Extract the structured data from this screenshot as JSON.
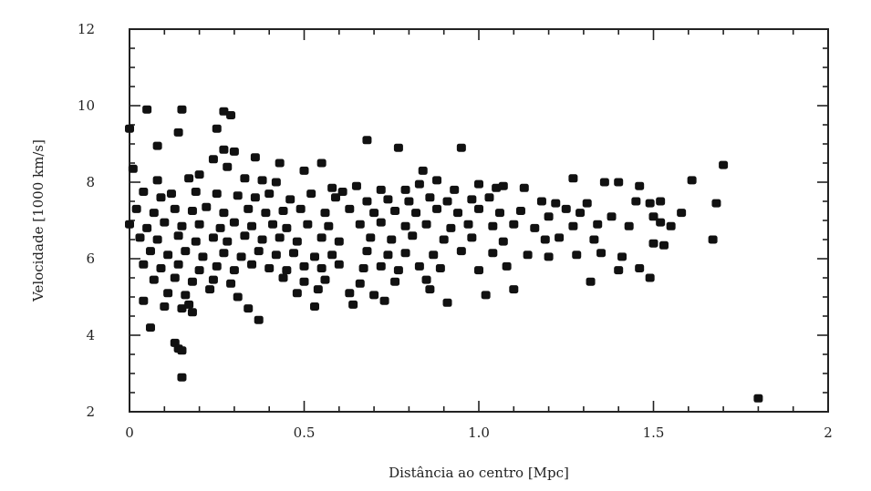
{
  "chart_data": {
    "type": "scatter",
    "title": "",
    "xlabel": "Distância ao centro [Mpc]",
    "ylabel": "Velocidade [1000 km/s]",
    "xlim": [
      0,
      2
    ],
    "ylim": [
      2,
      12
    ],
    "x_ticks": [
      {
        "value": 0,
        "label": "0"
      },
      {
        "value": 0.5,
        "label": "0.5"
      },
      {
        "value": 1.0,
        "label": "1.0"
      },
      {
        "value": 1.5,
        "label": "1.5"
      },
      {
        "value": 2,
        "label": "2"
      }
    ],
    "y_ticks": [
      {
        "value": 2,
        "label": "2"
      },
      {
        "value": 4,
        "label": "4"
      },
      {
        "value": 6,
        "label": "6"
      },
      {
        "value": 8,
        "label": "8"
      },
      {
        "value": 10,
        "label": "10"
      },
      {
        "value": 12,
        "label": "12"
      }
    ],
    "grid": false,
    "marker_color": "#111111",
    "series": [
      {
        "points": [
          [
            0.0,
            9.4
          ],
          [
            0.05,
            9.9
          ],
          [
            0.15,
            9.9
          ],
          [
            0.27,
            9.85
          ],
          [
            0.29,
            9.75
          ],
          [
            0.14,
            9.3
          ],
          [
            0.25,
            9.4
          ],
          [
            0.08,
            8.95
          ],
          [
            0.27,
            8.85
          ],
          [
            0.3,
            8.8
          ],
          [
            0.24,
            8.6
          ],
          [
            0.36,
            8.65
          ],
          [
            0.01,
            8.35
          ],
          [
            0.28,
            8.4
          ],
          [
            0.43,
            8.5
          ],
          [
            0.5,
            8.3
          ],
          [
            0.55,
            8.5
          ],
          [
            0.68,
            9.1
          ],
          [
            0.77,
            8.9
          ],
          [
            0.95,
            8.9
          ],
          [
            0.84,
            8.3
          ],
          [
            0.88,
            8.05
          ],
          [
            1.0,
            7.95
          ],
          [
            1.05,
            7.85
          ],
          [
            1.07,
            7.9
          ],
          [
            1.13,
            7.85
          ],
          [
            1.36,
            8.0
          ],
          [
            1.4,
            8.0
          ],
          [
            1.46,
            7.9
          ],
          [
            1.61,
            8.05
          ],
          [
            1.7,
            8.45
          ],
          [
            1.27,
            8.1
          ],
          [
            0.08,
            8.05
          ],
          [
            0.17,
            8.1
          ],
          [
            0.2,
            8.2
          ],
          [
            0.33,
            8.1
          ],
          [
            0.38,
            8.05
          ],
          [
            0.42,
            8.0
          ],
          [
            0.58,
            7.85
          ],
          [
            0.61,
            7.75
          ],
          [
            0.65,
            7.9
          ],
          [
            0.72,
            7.8
          ],
          [
            0.79,
            7.8
          ],
          [
            0.83,
            7.95
          ],
          [
            0.93,
            7.8
          ],
          [
            0.04,
            7.75
          ],
          [
            0.09,
            7.6
          ],
          [
            0.12,
            7.7
          ],
          [
            0.19,
            7.75
          ],
          [
            0.25,
            7.7
          ],
          [
            0.31,
            7.65
          ],
          [
            0.36,
            7.6
          ],
          [
            0.4,
            7.7
          ],
          [
            0.46,
            7.55
          ],
          [
            0.52,
            7.7
          ],
          [
            0.59,
            7.6
          ],
          [
            0.68,
            7.5
          ],
          [
            0.74,
            7.55
          ],
          [
            0.8,
            7.5
          ],
          [
            0.86,
            7.6
          ],
          [
            0.91,
            7.5
          ],
          [
            0.98,
            7.55
          ],
          [
            1.03,
            7.6
          ],
          [
            1.18,
            7.5
          ],
          [
            1.22,
            7.45
          ],
          [
            1.31,
            7.45
          ],
          [
            1.45,
            7.5
          ],
          [
            1.49,
            7.45
          ],
          [
            1.52,
            7.5
          ],
          [
            1.68,
            7.45
          ],
          [
            0.02,
            7.3
          ],
          [
            0.07,
            7.2
          ],
          [
            0.13,
            7.3
          ],
          [
            0.18,
            7.25
          ],
          [
            0.22,
            7.35
          ],
          [
            0.27,
            7.2
          ],
          [
            0.34,
            7.3
          ],
          [
            0.39,
            7.2
          ],
          [
            0.44,
            7.25
          ],
          [
            0.49,
            7.3
          ],
          [
            0.56,
            7.2
          ],
          [
            0.63,
            7.3
          ],
          [
            0.7,
            7.2
          ],
          [
            0.76,
            7.25
          ],
          [
            0.82,
            7.2
          ],
          [
            0.88,
            7.3
          ],
          [
            0.94,
            7.2
          ],
          [
            1.0,
            7.3
          ],
          [
            1.06,
            7.2
          ],
          [
            1.12,
            7.25
          ],
          [
            1.2,
            7.1
          ],
          [
            1.25,
            7.3
          ],
          [
            1.29,
            7.2
          ],
          [
            1.38,
            7.1
          ],
          [
            1.5,
            7.1
          ],
          [
            1.58,
            7.2
          ],
          [
            0.0,
            6.9
          ],
          [
            0.05,
            6.8
          ],
          [
            0.1,
            6.95
          ],
          [
            0.15,
            6.85
          ],
          [
            0.2,
            6.9
          ],
          [
            0.26,
            6.8
          ],
          [
            0.3,
            6.95
          ],
          [
            0.35,
            6.85
          ],
          [
            0.41,
            6.9
          ],
          [
            0.45,
            6.8
          ],
          [
            0.51,
            6.9
          ],
          [
            0.57,
            6.85
          ],
          [
            0.66,
            6.9
          ],
          [
            0.72,
            6.95
          ],
          [
            0.79,
            6.85
          ],
          [
            0.85,
            6.9
          ],
          [
            0.92,
            6.8
          ],
          [
            0.97,
            6.9
          ],
          [
            1.04,
            6.85
          ],
          [
            1.1,
            6.9
          ],
          [
            1.16,
            6.8
          ],
          [
            1.27,
            6.85
          ],
          [
            1.34,
            6.9
          ],
          [
            1.43,
            6.85
          ],
          [
            1.52,
            6.95
          ],
          [
            1.55,
            6.85
          ],
          [
            0.03,
            6.55
          ],
          [
            0.08,
            6.5
          ],
          [
            0.14,
            6.6
          ],
          [
            0.19,
            6.45
          ],
          [
            0.24,
            6.55
          ],
          [
            0.28,
            6.45
          ],
          [
            0.33,
            6.6
          ],
          [
            0.38,
            6.5
          ],
          [
            0.43,
            6.55
          ],
          [
            0.48,
            6.45
          ],
          [
            0.55,
            6.55
          ],
          [
            0.6,
            6.45
          ],
          [
            0.69,
            6.55
          ],
          [
            0.75,
            6.5
          ],
          [
            0.81,
            6.6
          ],
          [
            0.9,
            6.5
          ],
          [
            0.98,
            6.55
          ],
          [
            1.07,
            6.45
          ],
          [
            1.19,
            6.5
          ],
          [
            1.23,
            6.55
          ],
          [
            1.33,
            6.5
          ],
          [
            1.5,
            6.4
          ],
          [
            1.53,
            6.35
          ],
          [
            1.67,
            6.5
          ],
          [
            0.06,
            6.2
          ],
          [
            0.11,
            6.1
          ],
          [
            0.16,
            6.2
          ],
          [
            0.21,
            6.05
          ],
          [
            0.27,
            6.15
          ],
          [
            0.32,
            6.05
          ],
          [
            0.37,
            6.2
          ],
          [
            0.42,
            6.1
          ],
          [
            0.47,
            6.15
          ],
          [
            0.53,
            6.05
          ],
          [
            0.58,
            6.1
          ],
          [
            0.68,
            6.2
          ],
          [
            0.74,
            6.1
          ],
          [
            0.79,
            6.15
          ],
          [
            0.87,
            6.1
          ],
          [
            0.95,
            6.2
          ],
          [
            1.04,
            6.15
          ],
          [
            1.14,
            6.1
          ],
          [
            1.2,
            6.05
          ],
          [
            1.28,
            6.1
          ],
          [
            1.35,
            6.15
          ],
          [
            1.41,
            6.05
          ],
          [
            0.04,
            5.85
          ],
          [
            0.09,
            5.75
          ],
          [
            0.14,
            5.85
          ],
          [
            0.2,
            5.7
          ],
          [
            0.25,
            5.8
          ],
          [
            0.3,
            5.7
          ],
          [
            0.35,
            5.85
          ],
          [
            0.4,
            5.75
          ],
          [
            0.45,
            5.7
          ],
          [
            0.5,
            5.8
          ],
          [
            0.55,
            5.75
          ],
          [
            0.6,
            5.85
          ],
          [
            0.67,
            5.75
          ],
          [
            0.72,
            5.8
          ],
          [
            0.77,
            5.7
          ],
          [
            0.83,
            5.8
          ],
          [
            0.89,
            5.75
          ],
          [
            1.0,
            5.7
          ],
          [
            1.08,
            5.8
          ],
          [
            1.4,
            5.7
          ],
          [
            1.46,
            5.75
          ],
          [
            0.07,
            5.45
          ],
          [
            0.13,
            5.5
          ],
          [
            0.18,
            5.4
          ],
          [
            0.24,
            5.45
          ],
          [
            0.29,
            5.35
          ],
          [
            0.44,
            5.5
          ],
          [
            0.5,
            5.4
          ],
          [
            0.56,
            5.45
          ],
          [
            0.66,
            5.35
          ],
          [
            0.76,
            5.4
          ],
          [
            0.85,
            5.45
          ],
          [
            1.32,
            5.4
          ],
          [
            1.49,
            5.5
          ],
          [
            0.11,
            5.1
          ],
          [
            0.16,
            5.05
          ],
          [
            0.23,
            5.2
          ],
          [
            0.31,
            5.0
          ],
          [
            0.48,
            5.1
          ],
          [
            0.54,
            5.2
          ],
          [
            0.63,
            5.1
          ],
          [
            0.7,
            5.05
          ],
          [
            0.86,
            5.2
          ],
          [
            1.02,
            5.05
          ],
          [
            1.1,
            5.2
          ],
          [
            0.04,
            4.9
          ],
          [
            0.1,
            4.75
          ],
          [
            0.15,
            4.7
          ],
          [
            0.17,
            4.8
          ],
          [
            0.34,
            4.7
          ],
          [
            0.53,
            4.75
          ],
          [
            0.64,
            4.8
          ],
          [
            0.73,
            4.9
          ],
          [
            0.91,
            4.85
          ],
          [
            0.18,
            4.6
          ],
          [
            0.06,
            4.2
          ],
          [
            0.37,
            4.4
          ],
          [
            0.13,
            3.8
          ],
          [
            0.14,
            3.65
          ],
          [
            0.15,
            3.6
          ],
          [
            0.15,
            2.9
          ],
          [
            1.8,
            2.35
          ]
        ]
      }
    ]
  }
}
